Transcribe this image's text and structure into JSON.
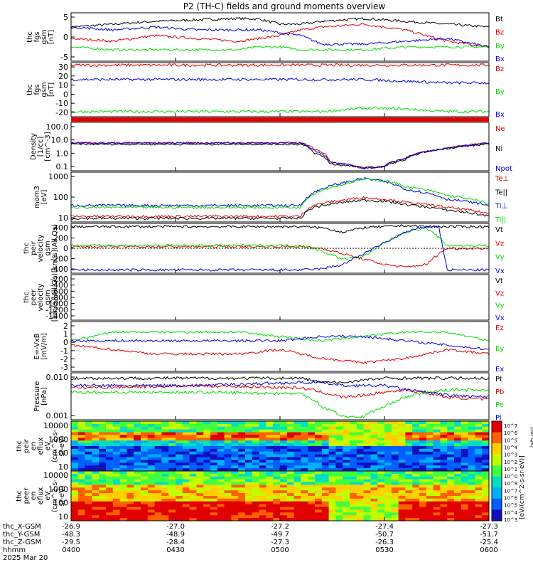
{
  "title": "P2 (TH-C) fields and ground moments overview",
  "colors": {
    "black": "#000000",
    "red": "#e00000",
    "green": "#00dd00",
    "blue": "#0000e0"
  },
  "x_tick_labels": [
    "0400",
    "0430",
    "0500",
    "0530",
    "0600"
  ],
  "chart_data": [
    {
      "type": "line",
      "ylabel": [
        "thc",
        "fgs",
        "gsm",
        "[nT]"
      ],
      "ticks": [
        "5",
        "0",
        "-5"
      ],
      "ylim": [
        -8,
        9
      ],
      "legend": [
        {
          "name": "Bt",
          "color": "black"
        },
        {
          "name": "Bz",
          "color": "red"
        },
        {
          "name": "By",
          "color": "green"
        },
        {
          "name": "Bx",
          "color": "blue"
        }
      ],
      "x": [
        0,
        0.1,
        0.2,
        0.3,
        0.4,
        0.45,
        0.5,
        0.55,
        0.6,
        0.7,
        0.8,
        0.9,
        1.0
      ],
      "series": [
        {
          "name": "Bt",
          "values": [
            4,
            5,
            6,
            6.5,
            7,
            6.8,
            5,
            5,
            6,
            7,
            6,
            5,
            4
          ]
        },
        {
          "name": "Bz",
          "values": [
            0,
            -1,
            1,
            0,
            -1,
            0,
            1,
            3,
            4,
            5,
            3,
            -1,
            -3
          ]
        },
        {
          "name": "By",
          "values": [
            -3,
            -4,
            -4,
            -4,
            -4,
            -3,
            -3,
            -4,
            -4,
            -4,
            -3,
            -3,
            -3
          ]
        },
        {
          "name": "Bx",
          "values": [
            4,
            3,
            4,
            3,
            3,
            3,
            2,
            1,
            -2,
            -2,
            -1,
            0,
            -3
          ]
        }
      ]
    },
    {
      "type": "line",
      "ylabel": [
        "thc",
        "fgs",
        "gsm",
        "[nT]"
      ],
      "ticks": [
        "30",
        "20",
        "10",
        "0",
        "-10",
        "-20"
      ],
      "ylim": [
        -27,
        37
      ],
      "legend": [
        {
          "name": "Bz",
          "color": "red"
        },
        {
          "name": "By",
          "color": "green"
        },
        {
          "name": "Bx",
          "color": "blue"
        }
      ],
      "x": [
        0,
        0.2,
        0.4,
        0.6,
        0.7,
        0.8,
        0.9,
        1.0
      ],
      "series": [
        {
          "name": "Bz",
          "values": [
            34,
            34,
            34,
            34,
            34,
            34,
            34,
            34
          ]
        },
        {
          "name": "By",
          "values": [
            -21,
            -21,
            -21,
            -21,
            -17,
            -18,
            -21,
            -21
          ]
        },
        {
          "name": "Bx",
          "values": [
            17,
            17,
            17,
            17,
            17,
            15,
            13,
            13
          ]
        }
      ]
    },
    {
      "type": "line",
      "yscale": "log",
      "ylabel": [
        "Density",
        "[1/cc]",
        "[cm^-3]"
      ],
      "ticks": [
        "100.0",
        "10.0",
        "1.0",
        "0.1"
      ],
      "ylim": [
        0.05,
        150
      ],
      "legend": [
        {
          "name": "Ne",
          "color": "red"
        },
        {
          "name": "Ni",
          "color": "black"
        },
        {
          "name": "Npot",
          "color": "blue"
        }
      ],
      "x": [
        0,
        0.3,
        0.55,
        0.58,
        0.62,
        0.7,
        0.75,
        0.8,
        0.9,
        1.0
      ],
      "series": [
        {
          "name": "Ne",
          "values": [
            5,
            5,
            5,
            2,
            0.2,
            0.08,
            0.1,
            0.4,
            2,
            5
          ]
        },
        {
          "name": "Ni",
          "values": [
            4,
            4,
            4,
            1,
            0.15,
            0.08,
            0.1,
            0.3,
            2,
            4
          ]
        },
        {
          "name": "Npot",
          "values": [
            5,
            5,
            5,
            1.5,
            0.2,
            0.07,
            0.1,
            0.4,
            2,
            5
          ]
        }
      ]
    },
    {
      "type": "line",
      "yscale": "log",
      "ylabel": [
        "mom3",
        "[eV]"
      ],
      "ticks": [
        "1000",
        "100",
        "10"
      ],
      "ylim": [
        8,
        2000
      ],
      "legend": [
        {
          "name": "Te⊥",
          "color": "red"
        },
        {
          "name": "Te||",
          "color": "black"
        },
        {
          "name": "Ti⊥",
          "color": "blue"
        },
        {
          "name": "Ti||",
          "color": "green"
        }
      ],
      "x": [
        0,
        0.3,
        0.55,
        0.58,
        0.65,
        0.7,
        0.75,
        0.8,
        0.9,
        1.0
      ],
      "series": [
        {
          "name": "Te⊥",
          "values": [
            15,
            15,
            15,
            50,
            90,
            120,
            100,
            70,
            40,
            20
          ]
        },
        {
          "name": "Te||",
          "values": [
            12,
            12,
            12,
            40,
            70,
            90,
            80,
            55,
            30,
            15
          ]
        },
        {
          "name": "Ti⊥",
          "values": [
            50,
            50,
            50,
            200,
            600,
            1000,
            700,
            300,
            100,
            50
          ]
        },
        {
          "name": "Ti||",
          "values": [
            40,
            40,
            40,
            180,
            500,
            900,
            800,
            400,
            150,
            60
          ]
        }
      ]
    },
    {
      "type": "line",
      "ylabel": [
        "thc",
        "peir",
        "velocity",
        "gsm",
        "[km/s](All Qs)"
      ],
      "ticks": [
        "400",
        "200",
        "0",
        "-200",
        "-400"
      ],
      "ylim": [
        -460,
        460
      ],
      "legend": [
        {
          "name": "Vt",
          "color": "black"
        },
        {
          "name": "Vz",
          "color": "red"
        },
        {
          "name": "Vy",
          "color": "green"
        },
        {
          "name": "Vx",
          "color": "blue"
        }
      ],
      "x": [
        0,
        0.3,
        0.55,
        0.6,
        0.65,
        0.7,
        0.75,
        0.8,
        0.85,
        0.88,
        0.9,
        1.0
      ],
      "series": [
        {
          "name": "Vt",
          "values": [
            400,
            400,
            400,
            380,
            300,
            380,
            400,
            420,
            400,
            400,
            400,
            400
          ]
        },
        {
          "name": "Vz",
          "values": [
            30,
            30,
            30,
            0,
            -100,
            -200,
            -300,
            -350,
            -300,
            -100,
            0,
            0
          ]
        },
        {
          "name": "Vy",
          "values": [
            50,
            50,
            50,
            -50,
            -200,
            -150,
            100,
            300,
            380,
            200,
            50,
            50
          ]
        },
        {
          "name": "Vx",
          "values": [
            -400,
            -400,
            -400,
            -380,
            -300,
            -100,
            100,
            300,
            400,
            400,
            -400,
            -400
          ]
        }
      ]
    },
    {
      "type": "line",
      "ylabel": [
        "thc",
        "peer",
        "velocity",
        "gsm",
        "[km/s](All Qs)"
      ],
      "ticks": [
        "-200",
        "-400",
        "-600",
        "-800",
        "-1000",
        "-1200",
        "-1400"
      ],
      "ylim": [
        -1450,
        -100
      ],
      "legend": [
        {
          "name": "Vt",
          "color": "black"
        },
        {
          "name": "Vz",
          "color": "red"
        },
        {
          "name": "Vy",
          "color": "green"
        },
        {
          "name": "Vx",
          "color": "blue"
        }
      ],
      "x": [],
      "series": []
    },
    {
      "type": "line",
      "ylabel": [
        "E=-VxB",
        "[mV/m]"
      ],
      "ticks": [
        "2",
        "1",
        "0",
        "-1",
        "-2",
        "-3"
      ],
      "ylim": [
        -3.5,
        2.2
      ],
      "legend": [
        {
          "name": "Ez",
          "color": "red"
        },
        {
          "name": "Ey",
          "color": "green"
        },
        {
          "name": "Ex",
          "color": "blue"
        }
      ],
      "x": [
        0,
        0.1,
        0.2,
        0.3,
        0.4,
        0.5,
        0.6,
        0.7,
        0.8,
        0.9,
        1.0
      ],
      "series": [
        {
          "name": "Ez",
          "values": [
            -0.5,
            -1,
            -1.5,
            -1.5,
            -1.5,
            -1,
            -2,
            -2.5,
            -2,
            -1,
            -1.5
          ]
        },
        {
          "name": "Ey",
          "values": [
            0,
            1,
            1,
            1,
            1,
            0.5,
            0,
            0.5,
            1,
            1,
            0
          ]
        },
        {
          "name": "Ex",
          "values": [
            0,
            0,
            0,
            0,
            0,
            0,
            0.5,
            0.5,
            0,
            -0.5,
            -1
          ]
        }
      ]
    },
    {
      "type": "line",
      "yscale": "log",
      "ylabel": [
        "Pressure",
        "[nPa]"
      ],
      "ticks": [
        "0.010",
        "0.001"
      ],
      "ylim": [
        0.0006,
        0.05
      ],
      "legend": [
        {
          "name": "Pt",
          "color": "black"
        },
        {
          "name": "Pb",
          "color": "red"
        },
        {
          "name": "Pe",
          "color": "green"
        },
        {
          "name": "Pi",
          "color": "blue"
        }
      ],
      "x": [
        0,
        0.3,
        0.55,
        0.6,
        0.65,
        0.7,
        0.75,
        0.8,
        0.9,
        1.0
      ],
      "series": [
        {
          "name": "Pt",
          "values": [
            0.03,
            0.03,
            0.03,
            0.02,
            0.02,
            0.025,
            0.03,
            0.03,
            0.03,
            0.03
          ]
        },
        {
          "name": "Pb",
          "values": [
            0.012,
            0.015,
            0.012,
            0.008,
            0.005,
            0.006,
            0.008,
            0.01,
            0.005,
            0.004
          ]
        },
        {
          "name": "Pe",
          "values": [
            0.008,
            0.008,
            0.007,
            0.002,
            0.0008,
            0.0008,
            0.002,
            0.005,
            0.01,
            0.01
          ]
        },
        {
          "name": "Pi",
          "values": [
            0.015,
            0.015,
            0.02,
            0.02,
            0.015,
            0.015,
            0.015,
            0.01,
            0.006,
            0.005
          ]
        }
      ]
    },
    {
      "type": "heatmap",
      "ylabel": [
        "thc",
        "peir",
        "en",
        "eflux",
        "eV",
        "(cm^2-s-",
        "sr-eV)"
      ],
      "ticks": [
        "10000",
        "1000",
        "100",
        "10"
      ],
      "ylim": [
        5,
        20000
      ]
    },
    {
      "type": "heatmap",
      "ylabel": [
        "thc",
        "peer",
        "en",
        "eflux",
        "eV",
        "(cm^2-s-",
        "sr-eV)"
      ],
      "ticks": [
        "10000",
        "1000",
        "100",
        "10"
      ],
      "ylim": [
        5,
        20000
      ]
    }
  ],
  "colorbar": {
    "label": "[eV/(cm^2-s-sr-eV)]",
    "side_label": "(All Qs)",
    "ticks": [
      "10^7",
      "10^6",
      "10^5",
      "10^4",
      "10^3",
      "10^2",
      "10^1",
      "10^0",
      "10^8",
      "10^7",
      "10^6",
      "10^5",
      "10^4",
      "10^3"
    ]
  },
  "footer": {
    "rows": [
      {
        "label": "thc_X-GSM",
        "values": [
          "-26.9",
          "-27.0",
          "-27.2",
          "-27.4",
          "-27.3"
        ]
      },
      {
        "label": "thc_Y-GSM",
        "values": [
          "-48.3",
          "-48.9",
          "-49.7",
          "-50.7",
          "-51.7"
        ]
      },
      {
        "label": "thc_Z-GSM",
        "values": [
          "-29.5",
          "-28.4",
          "-27.3",
          "-26.3",
          "-25.4"
        ]
      },
      {
        "label": "hhmm",
        "values": [
          "0400",
          "0430",
          "0500",
          "0530",
          "0600"
        ]
      }
    ],
    "date": "2025 Mar 20"
  }
}
